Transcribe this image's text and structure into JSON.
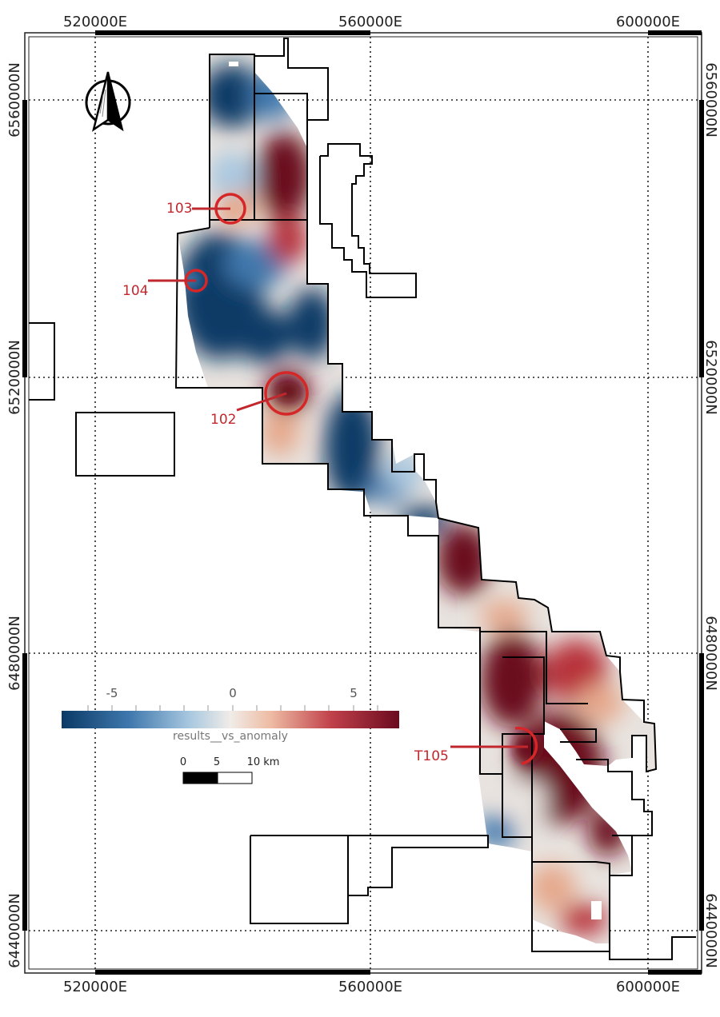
{
  "map": {
    "grid_eastings": [
      "520000E",
      "560000E",
      "600000E"
    ],
    "grid_northings": [
      "6560000N",
      "6520000N",
      "6480000N",
      "6440000N"
    ],
    "colors": {
      "deep_blue": "#0b3a66",
      "mid_blue": "#3f78ad",
      "light_blue": "#a9c8e0",
      "neutral": "#e8e3df",
      "light_red": "#e6a98c",
      "mid_red": "#b8303a",
      "deep_red": "#6b0a1f",
      "target": "#d62728"
    },
    "north_arrow_icon": "north-arrow-icon",
    "targets": [
      {
        "label": "103"
      },
      {
        "label": "104"
      },
      {
        "label": "102"
      },
      {
        "label": "T105"
      }
    ],
    "legend": {
      "title": "results__vs_anomaly",
      "ticks": [
        "-5",
        "0",
        "5"
      ]
    },
    "scale_bar": {
      "labels": [
        "0",
        "5",
        "10 km"
      ]
    }
  }
}
